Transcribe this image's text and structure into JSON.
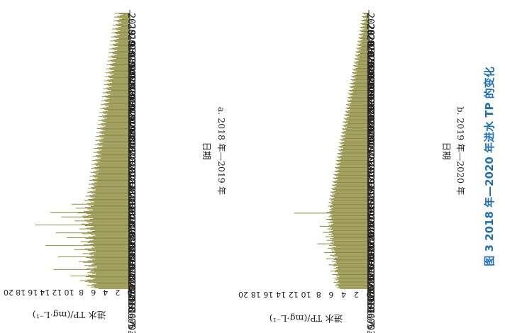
{
  "figure_caption": "图 3   2018 年—2020 年进水 TP 的变化",
  "bar_color": "#8c8a3c",
  "chart_data": [
    {
      "type": "bar",
      "subtitle": "a. 2018 年—2019 年",
      "xlabel": "日期",
      "ylabel": "进水 TP/(mg·L⁻¹)",
      "ylim": [
        0,
        20
      ],
      "yticks": [
        0,
        2,
        4,
        6,
        8,
        10,
        12,
        14,
        16,
        18,
        20
      ],
      "date_ticks": [
        "2018-05-20",
        "2018-06-03",
        "2018-06-17",
        "2018-07-01",
        "2018-07-15",
        "2018-07-29",
        "2018-08-12",
        "2018-08-26",
        "2018-09-09",
        "2018-09-23",
        "2018-10-07",
        "2018-10-21",
        "2018-11-04",
        "2018-11-18",
        "2018-12-02",
        "2018-12-16",
        "2018-12-30",
        "2019-01-13",
        "2019-01-27",
        "2019-02-10",
        "2019-02-24",
        "2019-03-10",
        "2019-03-24",
        "2019-04-07",
        "2019-04-21",
        "2019-05-05",
        "2019-05-19"
      ],
      "values": [
        5.2,
        5.8,
        6.4,
        5.9,
        7.1,
        6.3,
        5.5,
        6.0,
        6.8,
        7.4,
        8.2,
        7.0,
        6.1,
        5.7,
        6.5,
        7.3,
        9.8,
        6.9,
        5.6,
        6.2,
        7.0,
        6.6,
        5.9,
        6.4,
        12.6,
        7.1,
        6.0,
        5.4,
        6.8,
        7.5,
        6.3,
        5.8,
        6.1,
        7.7,
        8.4,
        6.9,
        6.2,
        5.7,
        6.6,
        7.2,
        11.8,
        6.4,
        5.9,
        6.7,
        7.8,
        6.5,
        6.0,
        5.6,
        6.9,
        9.2,
        7.4,
        6.3,
        5.8,
        6.1,
        13.9,
        7.6,
        6.5,
        6.0,
        7.0,
        8.1,
        6.7,
        6.2,
        5.9,
        7.3,
        10.4,
        6.8,
        6.1,
        5.7,
        6.4,
        7.9,
        12.2,
        7.0,
        6.3,
        5.8,
        6.6,
        8.3,
        7.2,
        6.5,
        6.0,
        7.4,
        15.6,
        8.0,
        6.8,
        6.2,
        7.1,
        9.1,
        7.5,
        6.6,
        6.1,
        7.7,
        11.3,
        7.8,
        6.9,
        6.4,
        7.2,
        8.6,
        13.1,
        7.6,
        6.7,
        6.1,
        7.0,
        8.9,
        7.4,
        6.5,
        6.0,
        6.8,
        9.6,
        7.1,
        6.4,
        5.9,
        6.6,
        7.5,
        6.9,
        6.2,
        5.8,
        6.5,
        7.3,
        6.7,
        6.1,
        5.7,
        6.3,
        7.0,
        6.6,
        6.0,
        5.6,
        6.2,
        6.9,
        6.4,
        5.9,
        5.5,
        6.1,
        6.8,
        6.3,
        5.8,
        5.4,
        6.0,
        6.7,
        6.2,
        5.7,
        5.3,
        5.9,
        6.6,
        6.1,
        5.6,
        5.2,
        5.8,
        6.5,
        6.0,
        5.5,
        5.1,
        5.7,
        6.4,
        5.9,
        5.4,
        5.0,
        5.6,
        6.3,
        5.8,
        5.3,
        4.9,
        5.5,
        6.2,
        5.7,
        5.2,
        4.8,
        5.4,
        6.1,
        5.6,
        5.1,
        4.7,
        5.3,
        6.0,
        5.5,
        5.0,
        4.6,
        5.2,
        5.9,
        5.4,
        4.9,
        4.5,
        5.1,
        5.8,
        5.3,
        4.8,
        4.4,
        5.0,
        5.7,
        5.2,
        4.7,
        4.3,
        4.9,
        5.6,
        5.1,
        4.6,
        4.2,
        4.8,
        5.5,
        5.0,
        4.5,
        4.1,
        4.7,
        5.4,
        4.9,
        4.4,
        4.0,
        4.6,
        5.3,
        4.8,
        4.3,
        3.9,
        4.5,
        5.2,
        4.7,
        4.2,
        3.8,
        4.4,
        5.1,
        4.6,
        4.1,
        3.7,
        4.3,
        5.0,
        4.5,
        4.0,
        3.6,
        4.2,
        4.9,
        4.4,
        3.9,
        3.5,
        4.1,
        4.8,
        4.3,
        3.8,
        3.4,
        4.0,
        4.7,
        4.2,
        3.7,
        3.3,
        3.9,
        4.6,
        4.1,
        3.6,
        3.2,
        3.8,
        4.5,
        4.0,
        3.5,
        3.1,
        3.7,
        4.4,
        3.9,
        3.4,
        3.0,
        3.6,
        4.3,
        3.8,
        3.3,
        2.9,
        3.5,
        4.2,
        3.7,
        3.2,
        2.8,
        3.4,
        4.1,
        3.6,
        3.1,
        2.7,
        3.3,
        4.0,
        3.5,
        3.0,
        2.6,
        3.2,
        3.9,
        3.4,
        2.9,
        2.5,
        3.1,
        3.8,
        3.3,
        2.8,
        2.4,
        3.0,
        3.7,
        3.2,
        2.7,
        2.3,
        2.9,
        3.6,
        3.1,
        2.6,
        2.2,
        2.8,
        3.5,
        3.0,
        2.5,
        2.1,
        2.7,
        3.4,
        2.9,
        2.4,
        2.0,
        2.6,
        3.3,
        2.8,
        2.3,
        1.9,
        2.5,
        3.2,
        2.7,
        2.2,
        1.8,
        2.4,
        3.1,
        2.6,
        2.1,
        1.7,
        2.3,
        3.0,
        2.5,
        2.0,
        1.6,
        2.2,
        2.9,
        2.4,
        1.9,
        1.5,
        2.1,
        2.8,
        2.3,
        1.8,
        1.4,
        2.0,
        2.7,
        2.2,
        1.7,
        1.3,
        1.9,
        2.6,
        2.1,
        1.6,
        1.2,
        1.8,
        2.5
      ]
    },
    {
      "type": "bar",
      "subtitle": "b. 2019 年—2020 年",
      "xlabel": "日期",
      "ylabel": "进水 TP/(mg·L⁻¹)",
      "ylim": [
        0,
        20
      ],
      "yticks": [
        0,
        2,
        4,
        6,
        8,
        10,
        12,
        14,
        16,
        18,
        20
      ],
      "date_ticks": [
        "2019-05-20",
        "2019-06-03",
        "2019-06-17",
        "2019-07-01",
        "2019-07-15",
        "2019-07-29",
        "2019-08-12",
        "2019-08-26",
        "2019-09-09",
        "2019-09-23",
        "2019-10-07",
        "2019-10-21",
        "2019-11-04",
        "2019-11-18",
        "2019-12-02",
        "2019-12-16",
        "2019-12-30",
        "2020-01-13",
        "2020-01-27",
        "2020-02-10",
        "2020-02-24",
        "2020-03-09",
        "2020-03-23",
        "2020-04-06",
        "2020-04-20",
        "2020-05-04",
        "2020-05-18"
      ],
      "values": [
        4.6,
        5.1,
        4.8,
        5.4,
        4.9,
        5.2,
        4.7,
        5.6,
        5.0,
        4.8,
        5.3,
        4.9,
        5.5,
        5.1,
        4.7,
        5.2,
        5.8,
        5.0,
        4.9,
        5.4,
        6.1,
        5.3,
        5.0,
        5.6,
        5.2,
        4.9,
        5.7,
        6.4,
        5.5,
        5.1,
        5.3,
        5.9,
        5.2,
        5.6,
        6.8,
        5.4,
        5.0,
        5.8,
        6.2,
        5.5,
        5.3,
        7.1,
        5.9,
        5.4,
        6.0,
        5.6,
        6.5,
        5.8,
        5.2,
        6.3,
        5.7,
        8.2,
        6.1,
        5.5,
        5.9,
        6.7,
        5.8,
        6.2,
        5.6,
        6.9,
        6.0,
        5.7,
        6.4,
        5.9,
        7.3,
        6.3,
        5.8,
        6.1,
        6.6,
        5.9,
        6.2,
        7.8,
        6.4,
        6.0,
        5.7,
        6.5,
        6.1,
        5.8,
        6.3,
        6.8,
        6.0,
        5.9,
        6.4,
        6.2,
        5.8,
        6.1,
        11.9,
        6.7,
        6.2,
        5.9,
        6.3,
        6.0,
        5.7,
        6.2,
        6.5,
        6.1,
        5.8,
        6.0,
        6.4,
        5.9,
        5.6,
        6.1,
        6.3,
        5.8,
        5.5,
        6.0,
        6.2,
        5.7,
        5.4,
        5.9,
        6.1,
        5.6,
        5.3,
        5.8,
        6.0,
        5.5,
        5.2,
        5.7,
        5.9,
        5.4,
        5.1,
        5.6,
        5.8,
        5.3,
        5.0,
        5.5,
        5.7,
        5.2,
        4.9,
        5.4,
        5.6,
        5.1,
        4.8,
        5.3,
        5.5,
        5.0,
        4.7,
        5.2,
        5.4,
        4.9,
        4.6,
        5.1,
        5.3,
        4.8,
        4.5,
        5.0,
        5.2,
        4.7,
        4.4,
        4.9,
        5.1,
        4.6,
        4.3,
        4.8,
        5.0,
        4.5,
        4.2,
        4.7,
        4.9,
        4.4,
        4.1,
        4.6,
        4.8,
        4.3,
        4.0,
        4.5,
        4.7,
        4.2,
        3.9,
        4.4,
        4.6,
        4.1,
        3.8,
        4.3,
        4.5,
        4.0,
        3.7,
        4.2,
        4.4,
        3.9,
        3.6,
        4.1,
        4.3,
        3.8,
        3.5,
        4.0,
        4.2,
        3.7,
        3.4,
        3.9,
        4.1,
        3.6,
        3.3,
        3.8,
        4.0,
        3.5,
        3.2,
        3.7,
        3.9,
        3.4,
        3.1,
        3.6,
        3.8,
        3.3,
        3.0,
        3.5,
        3.7,
        3.2,
        2.9,
        3.4,
        3.6,
        3.1,
        2.8,
        3.3,
        3.5,
        3.0,
        2.7,
        3.2,
        3.4,
        2.9,
        2.6,
        3.1,
        3.3,
        2.8,
        2.5,
        3.0,
        3.2,
        2.7,
        2.4,
        2.9,
        3.1,
        2.6,
        2.3,
        2.8,
        3.0,
        2.5,
        2.2,
        2.7,
        2.9,
        2.4,
        2.1,
        2.6,
        2.8,
        2.3,
        2.0,
        2.5,
        2.7,
        2.2,
        1.9,
        2.4,
        2.6,
        2.1,
        1.8,
        2.3,
        2.5,
        2.0,
        1.7,
        2.2,
        2.4,
        1.9,
        1.6,
        2.1,
        2.3,
        1.8,
        1.5,
        2.0,
        2.2,
        1.7,
        1.4,
        1.9,
        2.1,
        1.6,
        1.3,
        1.8,
        2.0,
        1.5,
        1.2,
        1.7,
        1.9,
        1.4,
        1.1,
        1.6,
        1.8,
        1.3,
        1.0,
        1.5,
        1.7,
        1.2,
        0.9,
        1.4,
        1.6,
        1.1,
        0.8,
        1.3,
        1.5,
        1.0,
        0.7,
        1.2,
        1.4,
        0.9,
        0.6,
        1.1,
        1.3,
        0.8,
        0.5,
        1.0,
        1.2,
        0.7,
        0.4,
        0.9,
        1.1,
        0.6,
        0.3,
        0.8,
        1.0
      ]
    }
  ]
}
